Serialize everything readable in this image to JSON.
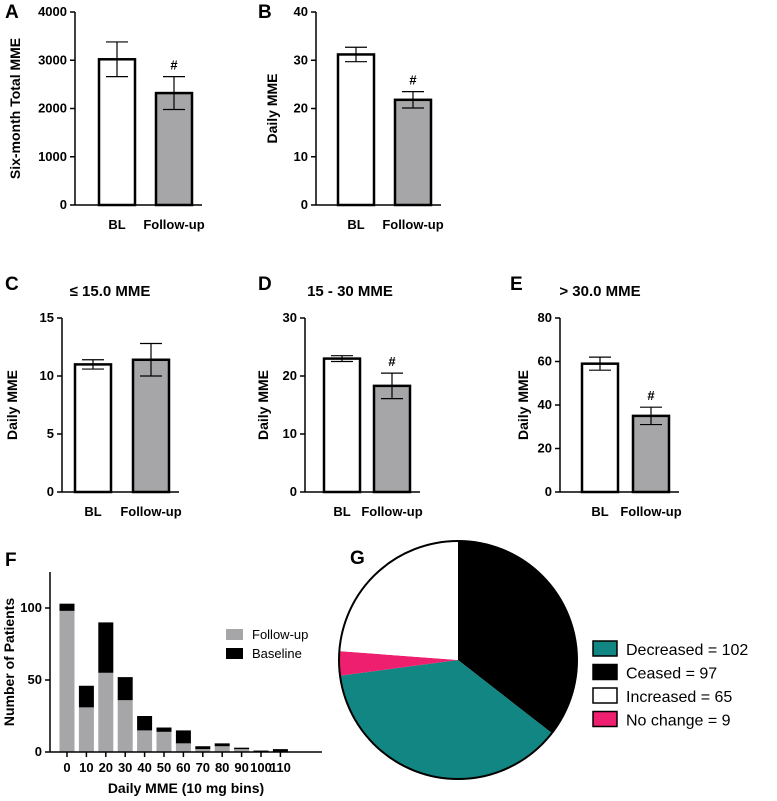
{
  "chart_data": [
    {
      "type": "bar",
      "label": "A",
      "title": "",
      "categories": [
        "BL",
        "Follow-up"
      ],
      "values": [
        3020,
        2320
      ],
      "errors": [
        360,
        340
      ],
      "annotations": [
        "",
        "#"
      ],
      "ylabel": "Six-month Total MME",
      "ylim": [
        0,
        4000
      ],
      "yticks": [
        0,
        1000,
        2000,
        3000,
        4000
      ]
    },
    {
      "type": "bar",
      "label": "B",
      "title": "",
      "categories": [
        "BL",
        "Follow-up"
      ],
      "values": [
        31.2,
        21.8
      ],
      "errors": [
        1.5,
        1.7
      ],
      "annotations": [
        "",
        "#"
      ],
      "ylabel": "Daily MME",
      "ylim": [
        0,
        40
      ],
      "yticks": [
        0,
        10,
        20,
        30,
        40
      ]
    },
    {
      "type": "bar",
      "label": "C",
      "title": "≤ 15.0 MME",
      "categories": [
        "BL",
        "Follow-up"
      ],
      "values": [
        11.0,
        11.4
      ],
      "errors": [
        0.4,
        1.4
      ],
      "annotations": [
        "",
        ""
      ],
      "ylabel": "Daily MME",
      "ylim": [
        0,
        15
      ],
      "yticks": [
        0,
        5,
        10,
        15
      ]
    },
    {
      "type": "bar",
      "label": "D",
      "title": "15 - 30 MME",
      "categories": [
        "BL",
        "Follow-up"
      ],
      "values": [
        23.0,
        18.3
      ],
      "errors": [
        0.5,
        2.2
      ],
      "annotations": [
        "",
        "#"
      ],
      "ylabel": "Daily MME",
      "ylim": [
        0,
        30
      ],
      "yticks": [
        0,
        10,
        20,
        30
      ]
    },
    {
      "type": "bar",
      "label": "E",
      "title": "> 30.0 MME",
      "categories": [
        "BL",
        "Follow-up"
      ],
      "values": [
        59.0,
        35.0
      ],
      "errors": [
        3.0,
        4.0
      ],
      "annotations": [
        "",
        "#"
      ],
      "ylabel": "Daily MME",
      "ylim": [
        0,
        80
      ],
      "yticks": [
        0,
        20,
        40,
        60,
        80
      ]
    },
    {
      "type": "bar",
      "label": "F",
      "title": "",
      "stacked": true,
      "categories": [
        "0",
        "10",
        "20",
        "30",
        "40",
        "50",
        "60",
        "70",
        "80",
        "90",
        "100",
        "110"
      ],
      "series": [
        {
          "name": "Follow-up",
          "color": "#a6a6a8",
          "values": [
            98,
            31,
            55,
            36,
            15,
            14,
            6,
            2,
            4,
            2,
            0,
            0
          ]
        },
        {
          "name": "Baseline",
          "color": "#000000",
          "values": [
            5,
            15,
            35,
            16,
            10,
            3,
            9,
            2,
            2,
            1,
            1,
            2
          ]
        }
      ],
      "xlabel": "Daily MME (10 mg bins)",
      "ylabel": "Number of Patients",
      "ylim": [
        0,
        125
      ],
      "yticks": [
        0,
        50,
        100
      ]
    },
    {
      "type": "pie",
      "label": "G",
      "title": "",
      "slices": [
        {
          "name": "Decreased",
          "value": 102,
          "color": "#128683",
          "legend": "Decreased = 102"
        },
        {
          "name": "Ceased",
          "value": 97,
          "color": "#000000",
          "legend": "Ceased = 97"
        },
        {
          "name": "Increased",
          "value": 65,
          "color": "#ffffff",
          "legend": "Increased = 65"
        },
        {
          "name": "No change",
          "value": 9,
          "color": "#ee1f6e",
          "legend": "No change = 9"
        }
      ],
      "slice_order": [
        "Ceased",
        "Decreased",
        "No change",
        "Increased"
      ]
    }
  ],
  "colors": {
    "bl_fill": "#ffffff",
    "followup_fill": "#a6a6a8",
    "axis": "#000000"
  }
}
